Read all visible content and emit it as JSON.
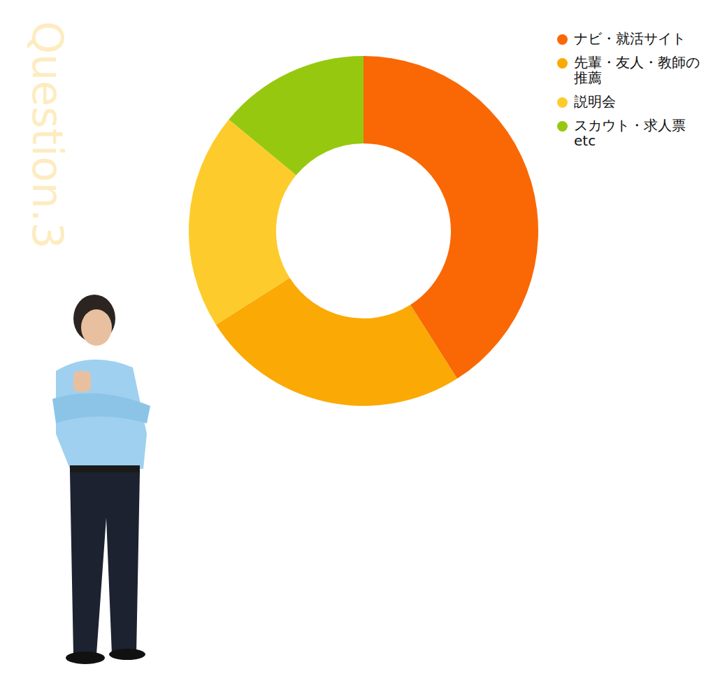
{
  "chart_data": {
    "type": "doughnut",
    "title": "Question.3",
    "categories": [
      "ナビ・就活サイト",
      "先輩・友人・教師の推薦",
      "説明会",
      "スカウト・求人票 etc"
    ],
    "values": [
      41,
      25,
      20,
      14
    ],
    "colors": [
      "#f96804",
      "#fba904",
      "#fdcc2c",
      "#96c80f"
    ],
    "legend": "top-right",
    "data_labels": false,
    "tick_labels": false
  }
}
